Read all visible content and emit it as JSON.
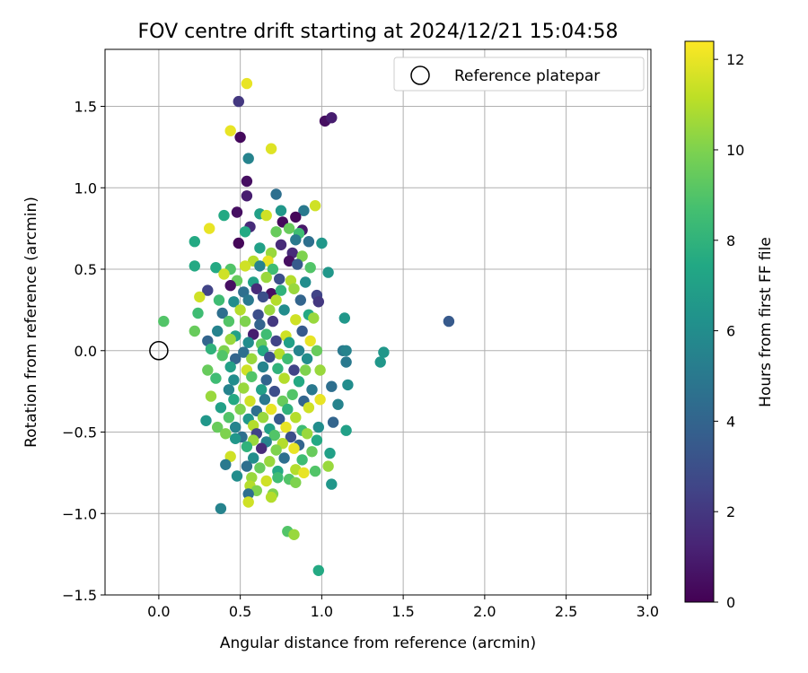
{
  "chart_data": {
    "type": "scatter",
    "title": "FOV centre drift starting at 2024/12/21 15:04:58",
    "xlabel": "Angular distance from reference (arcmin)",
    "ylabel": "Rotation from reference (arcmin)",
    "xlim": [
      -0.33,
      3.02
    ],
    "ylim": [
      -1.5,
      1.85
    ],
    "xticks": [
      0.0,
      0.5,
      1.0,
      1.5,
      2.0,
      2.5,
      3.0
    ],
    "xtick_labels": [
      "0.0",
      "0.5",
      "1.0",
      "1.5",
      "2.0",
      "2.5",
      "3.0"
    ],
    "yticks": [
      -1.5,
      -1.0,
      -0.5,
      0.0,
      0.5,
      1.0,
      1.5
    ],
    "ytick_labels": [
      "−1.5",
      "−1.0",
      "−0.5",
      "0.0",
      "0.5",
      "1.0",
      "1.5"
    ],
    "grid": true,
    "legend": {
      "position": "top-right",
      "entries": [
        "Reference platepar"
      ]
    },
    "colormap": "viridis",
    "colorbar": {
      "label": "Hours from first FF file",
      "range": [
        0,
        12.4
      ],
      "ticks": [
        0,
        2,
        4,
        6,
        8,
        10,
        12
      ],
      "tick_labels": [
        "0",
        "2",
        "4",
        "6",
        "8",
        "10",
        "12"
      ]
    },
    "reference_point": {
      "x": 0.0,
      "y": 0.0,
      "label": "Reference platepar"
    },
    "series": [
      {
        "points": [
          [
            0.54,
            1.64,
            12.0
          ],
          [
            0.49,
            1.53,
            2.0
          ],
          [
            1.02,
            1.41,
            0.5
          ],
          [
            1.06,
            1.43,
            1.0
          ],
          [
            0.44,
            1.35,
            12.0
          ],
          [
            0.5,
            1.31,
            0.3
          ],
          [
            0.69,
            1.24,
            11.8
          ],
          [
            0.55,
            1.18,
            5.5
          ],
          [
            0.54,
            1.04,
            0.5
          ],
          [
            0.54,
            0.95,
            1.0
          ],
          [
            0.72,
            0.96,
            4.5
          ],
          [
            0.48,
            0.85,
            0.5
          ],
          [
            0.4,
            0.83,
            7.5
          ],
          [
            0.62,
            0.84,
            7.0
          ],
          [
            0.66,
            0.83,
            11.5
          ],
          [
            0.75,
            0.86,
            6.5
          ],
          [
            0.89,
            0.86,
            5.0
          ],
          [
            0.96,
            0.89,
            11.5
          ],
          [
            0.84,
            0.82,
            0.2
          ],
          [
            0.76,
            0.79,
            0.3
          ],
          [
            0.56,
            0.76,
            1.5
          ],
          [
            0.31,
            0.75,
            12.0
          ],
          [
            0.53,
            0.73,
            7.5
          ],
          [
            0.8,
            0.75,
            9.5
          ],
          [
            0.88,
            0.74,
            0.8
          ],
          [
            0.86,
            0.72,
            8.5
          ],
          [
            0.72,
            0.73,
            9.5
          ],
          [
            0.49,
            0.66,
            0.2
          ],
          [
            0.22,
            0.67,
            7.5
          ],
          [
            0.62,
            0.63,
            7.0
          ],
          [
            0.75,
            0.65,
            1.5
          ],
          [
            0.92,
            0.67,
            4.5
          ],
          [
            1.0,
            0.66,
            6.5
          ],
          [
            0.84,
            0.68,
            5.0
          ],
          [
            0.69,
            0.6,
            10.5
          ],
          [
            0.82,
            0.6,
            1.5
          ],
          [
            0.88,
            0.58,
            10.0
          ],
          [
            0.58,
            0.55,
            11.0
          ],
          [
            0.67,
            0.55,
            12.0
          ],
          [
            0.8,
            0.55,
            0.5
          ],
          [
            0.22,
            0.52,
            7.5
          ],
          [
            0.35,
            0.51,
            7.5
          ],
          [
            0.44,
            0.5,
            9.0
          ],
          [
            0.53,
            0.52,
            11.5
          ],
          [
            0.62,
            0.52,
            5.5
          ],
          [
            0.7,
            0.5,
            8.5
          ],
          [
            0.85,
            0.53,
            3.5
          ],
          [
            0.93,
            0.51,
            9.0
          ],
          [
            1.04,
            0.48,
            6.5
          ],
          [
            0.4,
            0.47,
            11.5
          ],
          [
            0.48,
            0.43,
            9.5
          ],
          [
            0.58,
            0.42,
            7.0
          ],
          [
            0.66,
            0.45,
            10.5
          ],
          [
            0.74,
            0.44,
            3.0
          ],
          [
            0.81,
            0.43,
            11.0
          ],
          [
            0.9,
            0.42,
            6.0
          ],
          [
            0.3,
            0.37,
            2.5
          ],
          [
            0.44,
            0.4,
            0.5
          ],
          [
            0.52,
            0.36,
            4.5
          ],
          [
            0.6,
            0.38,
            1.5
          ],
          [
            0.69,
            0.35,
            0.5
          ],
          [
            0.75,
            0.37,
            8.0
          ],
          [
            0.83,
            0.38,
            10.5
          ],
          [
            0.97,
            0.34,
            2.5
          ],
          [
            0.25,
            0.33,
            11.5
          ],
          [
            0.37,
            0.31,
            8.5
          ],
          [
            0.46,
            0.3,
            6.0
          ],
          [
            0.55,
            0.31,
            5.0
          ],
          [
            0.64,
            0.33,
            3.0
          ],
          [
            0.72,
            0.31,
            11.0
          ],
          [
            0.87,
            0.31,
            4.0
          ],
          [
            0.98,
            0.3,
            2.0
          ],
          [
            0.24,
            0.23,
            8.5
          ],
          [
            0.39,
            0.23,
            4.5
          ],
          [
            0.5,
            0.25,
            11.0
          ],
          [
            0.61,
            0.22,
            3.0
          ],
          [
            0.68,
            0.25,
            10.5
          ],
          [
            0.77,
            0.25,
            6.0
          ],
          [
            0.92,
            0.22,
            7.5
          ],
          [
            0.43,
            0.18,
            9.0
          ],
          [
            0.53,
            0.18,
            10.0
          ],
          [
            0.62,
            0.16,
            4.0
          ],
          [
            0.7,
            0.18,
            2.0
          ],
          [
            0.84,
            0.19,
            11.5
          ],
          [
            0.95,
            0.2,
            10.5
          ],
          [
            1.14,
            0.2,
            6.5
          ],
          [
            0.03,
            0.18,
            9.0
          ],
          [
            1.78,
            0.18,
            3.5
          ],
          [
            0.22,
            0.12,
            9.5
          ],
          [
            0.36,
            0.12,
            5.5
          ],
          [
            0.47,
            0.09,
            7.0
          ],
          [
            0.58,
            0.1,
            1.0
          ],
          [
            0.66,
            0.1,
            8.5
          ],
          [
            0.78,
            0.09,
            11.5
          ],
          [
            0.88,
            0.12,
            3.5
          ],
          [
            0.3,
            0.06,
            4.0
          ],
          [
            0.44,
            0.07,
            10.5
          ],
          [
            0.55,
            0.05,
            6.0
          ],
          [
            0.63,
            0.04,
            9.5
          ],
          [
            0.72,
            0.06,
            2.5
          ],
          [
            0.8,
            0.05,
            7.0
          ],
          [
            0.93,
            0.06,
            12.0
          ],
          [
            0.32,
            0.01,
            8.0
          ],
          [
            0.4,
            0.0,
            10.0
          ],
          [
            0.52,
            -0.01,
            4.5
          ],
          [
            0.64,
            0.0,
            7.5
          ],
          [
            0.74,
            -0.02,
            11.0
          ],
          [
            0.86,
            0.0,
            5.5
          ],
          [
            0.97,
            0.0,
            9.5
          ],
          [
            1.13,
            0.0,
            5.0
          ],
          [
            1.15,
            0.0,
            5.5
          ],
          [
            1.38,
            -0.01,
            6.5
          ],
          [
            0.39,
            -0.03,
            9.0
          ],
          [
            0.47,
            -0.05,
            4.0
          ],
          [
            0.57,
            -0.05,
            10.5
          ],
          [
            0.68,
            -0.04,
            3.0
          ],
          [
            0.79,
            -0.05,
            8.5
          ],
          [
            0.91,
            -0.05,
            6.0
          ],
          [
            1.15,
            -0.07,
            5.0
          ],
          [
            1.36,
            -0.07,
            6.5
          ],
          [
            0.3,
            -0.12,
            9.5
          ],
          [
            0.44,
            -0.1,
            7.0
          ],
          [
            0.54,
            -0.12,
            11.5
          ],
          [
            0.64,
            -0.1,
            5.5
          ],
          [
            0.73,
            -0.11,
            8.0
          ],
          [
            0.83,
            -0.12,
            2.5
          ],
          [
            0.9,
            -0.12,
            10.0
          ],
          [
            0.99,
            -0.12,
            10.5
          ],
          [
            0.35,
            -0.17,
            8.5
          ],
          [
            0.46,
            -0.18,
            6.0
          ],
          [
            0.57,
            -0.16,
            9.0
          ],
          [
            0.66,
            -0.18,
            4.0
          ],
          [
            0.77,
            -0.17,
            11.0
          ],
          [
            0.86,
            -0.19,
            7.5
          ],
          [
            1.06,
            -0.22,
            4.5
          ],
          [
            1.16,
            -0.21,
            6.0
          ],
          [
            0.43,
            -0.24,
            5.5
          ],
          [
            0.52,
            -0.23,
            10.5
          ],
          [
            0.63,
            -0.24,
            7.0
          ],
          [
            0.71,
            -0.25,
            3.0
          ],
          [
            0.82,
            -0.27,
            9.0
          ],
          [
            0.94,
            -0.24,
            5.0
          ],
          [
            0.32,
            -0.28,
            10.5
          ],
          [
            0.46,
            -0.3,
            7.5
          ],
          [
            0.56,
            -0.31,
            11.5
          ],
          [
            0.65,
            -0.3,
            5.0
          ],
          [
            0.76,
            -0.31,
            9.5
          ],
          [
            0.89,
            -0.31,
            4.0
          ],
          [
            0.99,
            -0.3,
            12.0
          ],
          [
            0.38,
            -0.35,
            7.0
          ],
          [
            0.5,
            -0.36,
            10.0
          ],
          [
            0.6,
            -0.37,
            4.5
          ],
          [
            0.69,
            -0.36,
            12.0
          ],
          [
            0.79,
            -0.36,
            8.0
          ],
          [
            0.92,
            -0.35,
            11.5
          ],
          [
            1.1,
            -0.33,
            5.5
          ],
          [
            0.43,
            -0.41,
            9.0
          ],
          [
            0.55,
            -0.42,
            6.5
          ],
          [
            0.64,
            -0.41,
            10.5
          ],
          [
            0.74,
            -0.42,
            3.5
          ],
          [
            0.84,
            -0.41,
            11.0
          ],
          [
            1.07,
            -0.44,
            4.0
          ],
          [
            0.29,
            -0.43,
            6.5
          ],
          [
            0.36,
            -0.47,
            9.5
          ],
          [
            0.47,
            -0.47,
            5.5
          ],
          [
            0.58,
            -0.46,
            11.0
          ],
          [
            0.68,
            -0.48,
            7.0
          ],
          [
            0.78,
            -0.47,
            12.0
          ],
          [
            0.88,
            -0.49,
            8.5
          ],
          [
            0.98,
            -0.47,
            6.0
          ],
          [
            1.15,
            -0.49,
            7.0
          ],
          [
            0.41,
            -0.51,
            10.0
          ],
          [
            0.51,
            -0.53,
            4.5
          ],
          [
            0.6,
            -0.51,
            2.5
          ],
          [
            0.71,
            -0.52,
            9.0
          ],
          [
            0.81,
            -0.53,
            3.0
          ],
          [
            0.91,
            -0.51,
            10.5
          ],
          [
            0.47,
            -0.54,
            6.5
          ],
          [
            0.58,
            -0.55,
            10.5
          ],
          [
            0.66,
            -0.56,
            5.5
          ],
          [
            0.76,
            -0.57,
            11.0
          ],
          [
            0.86,
            -0.58,
            4.0
          ],
          [
            0.97,
            -0.55,
            7.5
          ],
          [
            0.54,
            -0.59,
            8.0
          ],
          [
            0.63,
            -0.6,
            1.5
          ],
          [
            0.72,
            -0.61,
            10.0
          ],
          [
            0.83,
            -0.6,
            12.0
          ],
          [
            0.94,
            -0.62,
            9.5
          ],
          [
            1.05,
            -0.63,
            7.0
          ],
          [
            0.44,
            -0.65,
            11.5
          ],
          [
            0.58,
            -0.66,
            6.0
          ],
          [
            0.68,
            -0.68,
            10.5
          ],
          [
            0.77,
            -0.66,
            4.5
          ],
          [
            0.88,
            -0.67,
            8.5
          ],
          [
            1.04,
            -0.71,
            10.5
          ],
          [
            0.41,
            -0.7,
            5.0
          ],
          [
            0.54,
            -0.71,
            4.5
          ],
          [
            0.62,
            -0.72,
            9.5
          ],
          [
            0.73,
            -0.74,
            7.5
          ],
          [
            0.84,
            -0.73,
            11.0
          ],
          [
            0.96,
            -0.74,
            9.0
          ],
          [
            0.48,
            -0.77,
            6.0
          ],
          [
            0.57,
            -0.78,
            10.5
          ],
          [
            0.66,
            -0.8,
            11.5
          ],
          [
            0.73,
            -0.78,
            8.5
          ],
          [
            0.8,
            -0.79,
            9.0
          ],
          [
            0.89,
            -0.75,
            12.0
          ],
          [
            0.84,
            -0.81,
            10.0
          ],
          [
            0.56,
            -0.83,
            11.0
          ],
          [
            0.6,
            -0.86,
            10.0
          ],
          [
            1.06,
            -0.82,
            6.5
          ],
          [
            0.55,
            -0.88,
            4.5
          ],
          [
            0.7,
            -0.88,
            10.0
          ],
          [
            0.69,
            -0.9,
            11.0
          ],
          [
            0.55,
            -0.93,
            11.5
          ],
          [
            0.38,
            -0.97,
            5.5
          ],
          [
            0.79,
            -1.11,
            9.0
          ],
          [
            0.83,
            -1.13,
            10.5
          ],
          [
            0.98,
            -1.35,
            7.5
          ]
        ]
      }
    ]
  }
}
